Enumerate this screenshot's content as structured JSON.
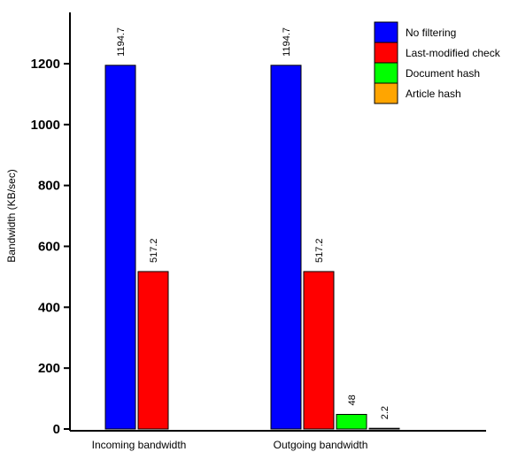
{
  "chart_data": {
    "type": "bar",
    "title": "",
    "xlabel": "",
    "ylabel": "Bandwidth (KB/sec)",
    "ylim": [
      0,
      1200
    ],
    "yticks": [
      0,
      200,
      400,
      600,
      800,
      1000,
      1200
    ],
    "grid": false,
    "legend_position": "top-right",
    "categories": [
      "Incoming bandwidth",
      "Outgoing bandwidth"
    ],
    "series": [
      {
        "name": "No filtering",
        "color": "#0000ff",
        "values": [
          1194.7,
          1194.7
        ],
        "labels": [
          "1194.7",
          "1194.7"
        ]
      },
      {
        "name": "Last-modified check",
        "color": "#ff0000",
        "values": [
          517.2,
          517.2
        ],
        "labels": [
          "517.2",
          "517.2"
        ]
      },
      {
        "name": "Document hash",
        "color": "#00ff00",
        "values": [
          null,
          48
        ],
        "labels": [
          null,
          "48"
        ]
      },
      {
        "name": "Article hash",
        "color": "#ffa500",
        "values": [
          null,
          2.2
        ],
        "labels": [
          null,
          "2.2"
        ]
      }
    ]
  }
}
